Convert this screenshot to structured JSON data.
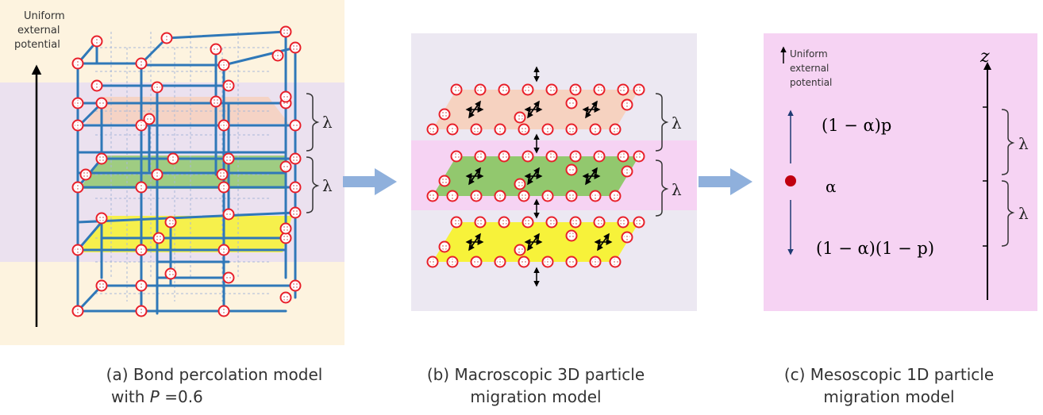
{
  "panel_a": {
    "potential_label": [
      "Uniform",
      "external",
      "potential"
    ],
    "lambda_labels": [
      "λ",
      "λ"
    ],
    "caption_line1": "(a) Bond percolation model",
    "caption_line2_prefix": "with ",
    "caption_line2_var": "P",
    "caption_line2_value": " =0.6"
  },
  "panel_b": {
    "lambda_labels": [
      "λ",
      "λ"
    ],
    "caption_line1": "(b) Macroscopic 3D particle",
    "caption_line2": "migration model"
  },
  "panel_c": {
    "potential_label": [
      "Uniform",
      "external",
      "potential"
    ],
    "axis_label": "z",
    "up_prob": "(1 − α)p",
    "stay_prob": "α",
    "down_prob": "(1 − α)(1 − p)",
    "lambda_labels": [
      "λ",
      "λ"
    ],
    "caption_line1": "(c) Mesoscopic 1D particle",
    "caption_line2": "migration model"
  },
  "colors": {
    "panel_a_bg": "#fdf3df",
    "band_lavender": "#ebe1ef",
    "layer_orange": "#f6d2c0",
    "layer_green": "#92c86e",
    "layer_yellow": "#f7f23a",
    "panel_b_bg": "#ece8f2",
    "panel_pink": "#f6d3f3",
    "lattice_blue": "#2f78b8",
    "particle_red": "#e8202a",
    "arrow_blue": "#8fb0dc"
  }
}
